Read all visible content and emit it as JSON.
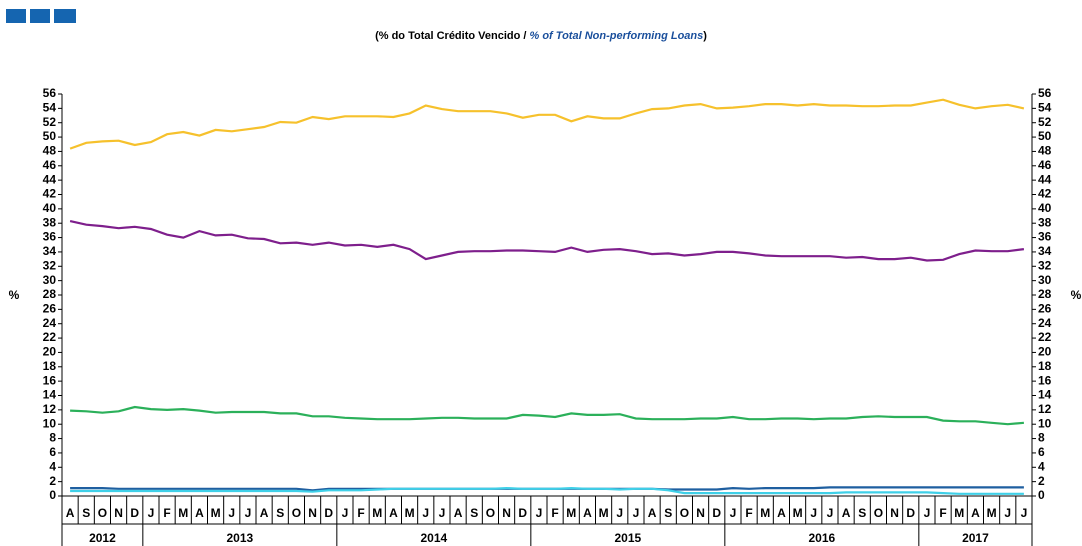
{
  "chart_data": {
    "type": "line",
    "subtitle": [
      "(% do Total Crédito Vencido / ",
      "% of Total Non-performing Loans",
      ")"
    ],
    "y_label": "%",
    "y2_label": "%",
    "categories": [
      "A",
      "S",
      "O",
      "N",
      "D",
      "J",
      "F",
      "M",
      "A",
      "M",
      "J",
      "J",
      "A",
      "S",
      "O",
      "N",
      "D",
      "J",
      "F",
      "M",
      "A",
      "M",
      "J",
      "J",
      "A",
      "S",
      "O",
      "N",
      "D",
      "J",
      "F",
      "M",
      "A",
      "M",
      "J",
      "J",
      "A",
      "S",
      "O",
      "N",
      "D",
      "J",
      "F",
      "M",
      "A",
      "M",
      "J",
      "J",
      "A",
      "S",
      "O",
      "N",
      "D",
      "J",
      "F",
      "M",
      "A",
      "M",
      "J",
      "J"
    ],
    "year_groups": [
      {
        "label": "2012",
        "months": 5
      },
      {
        "label": "2013",
        "months": 12
      },
      {
        "label": "2014",
        "months": 12
      },
      {
        "label": "2015",
        "months": 12
      },
      {
        "label": "2016",
        "months": 12
      },
      {
        "label": "2017",
        "months": 7
      }
    ],
    "ylim": [
      0,
      56
    ],
    "yticks": [
      0,
      2,
      4,
      6,
      8,
      10,
      12,
      14,
      16,
      18,
      20,
      22,
      24,
      26,
      28,
      30,
      32,
      34,
      36,
      38,
      40,
      42,
      44,
      46,
      48,
      50,
      52,
      54,
      56
    ],
    "y2lim": [
      0,
      56
    ],
    "y2ticks": [
      0,
      2,
      4,
      6,
      8,
      10,
      12,
      14,
      16,
      18,
      20,
      22,
      24,
      26,
      28,
      30,
      32,
      34,
      36,
      38,
      40,
      42,
      44,
      46,
      48,
      50,
      52,
      54,
      56
    ],
    "series": [
      {
        "color": "#f6c12c",
        "values": [
          48.4,
          49.2,
          49.4,
          49.5,
          48.9,
          49.3,
          50.4,
          50.7,
          50.2,
          51.0,
          50.8,
          51.1,
          51.4,
          52.1,
          52.0,
          52.8,
          52.5,
          52.9,
          52.9,
          52.9,
          52.8,
          53.3,
          54.4,
          53.9,
          53.6,
          53.6,
          53.6,
          53.3,
          52.7,
          53.1,
          53.1,
          52.2,
          52.9,
          52.6,
          52.6,
          53.3,
          53.9,
          54.0,
          54.4,
          54.6,
          54.0,
          54.1,
          54.3,
          54.6,
          54.6,
          54.4,
          54.6,
          54.4,
          54.4,
          54.3,
          54.3,
          54.4,
          54.4,
          54.8,
          55.2,
          54.5,
          54.0,
          54.3,
          54.5,
          54.0
        ]
      },
      {
        "color": "#7e1f8c",
        "values": [
          38.3,
          37.8,
          37.6,
          37.3,
          37.5,
          37.2,
          36.4,
          36.0,
          36.9,
          36.3,
          36.4,
          35.9,
          35.8,
          35.2,
          35.3,
          35.0,
          35.3,
          34.9,
          35.0,
          34.7,
          35.0,
          34.4,
          33.0,
          33.5,
          34.0,
          34.1,
          34.1,
          34.2,
          34.2,
          34.1,
          34.0,
          34.6,
          34.0,
          34.3,
          34.4,
          34.1,
          33.7,
          33.8,
          33.5,
          33.7,
          34.0,
          34.0,
          33.8,
          33.5,
          33.4,
          33.4,
          33.4,
          33.4,
          33.2,
          33.3,
          33.0,
          33.0,
          33.2,
          32.8,
          32.9,
          33.7,
          34.2,
          34.1,
          34.1,
          34.4
        ]
      },
      {
        "color": "#2bb05a",
        "values": [
          11.9,
          11.8,
          11.6,
          11.8,
          12.4,
          12.1,
          12.0,
          12.1,
          11.9,
          11.6,
          11.7,
          11.7,
          11.7,
          11.5,
          11.5,
          11.1,
          11.1,
          10.9,
          10.8,
          10.7,
          10.7,
          10.7,
          10.8,
          10.9,
          10.9,
          10.8,
          10.8,
          10.8,
          11.3,
          11.2,
          11.0,
          11.5,
          11.3,
          11.3,
          11.4,
          10.8,
          10.7,
          10.7,
          10.7,
          10.8,
          10.8,
          11.0,
          10.7,
          10.7,
          10.8,
          10.8,
          10.7,
          10.8,
          10.8,
          11.0,
          11.1,
          11.0,
          11.0,
          11.0,
          10.5,
          10.4,
          10.4,
          10.2,
          10.0,
          10.2
        ]
      },
      {
        "color": "#1f5fa0",
        "values": [
          1.1,
          1.1,
          1.1,
          1.0,
          1.0,
          1.0,
          1.0,
          1.0,
          1.0,
          1.0,
          1.0,
          1.0,
          1.0,
          1.0,
          1.0,
          0.8,
          1.0,
          1.0,
          1.0,
          1.0,
          1.0,
          1.0,
          1.0,
          1.0,
          1.0,
          1.0,
          1.0,
          1.0,
          1.0,
          1.0,
          1.0,
          1.0,
          1.0,
          1.0,
          1.0,
          1.0,
          1.0,
          0.9,
          0.9,
          0.9,
          0.9,
          1.1,
          1.0,
          1.1,
          1.1,
          1.1,
          1.1,
          1.2,
          1.2,
          1.2,
          1.2,
          1.2,
          1.2,
          1.2,
          1.2,
          1.2,
          1.2,
          1.2,
          1.2,
          1.2
        ]
      },
      {
        "color": "#3fd0e8",
        "values": [
          0.7,
          0.7,
          0.7,
          0.7,
          0.7,
          0.7,
          0.7,
          0.7,
          0.7,
          0.7,
          0.7,
          0.7,
          0.7,
          0.7,
          0.7,
          0.6,
          0.8,
          0.8,
          0.8,
          0.9,
          1.0,
          1.0,
          1.0,
          1.0,
          1.0,
          1.0,
          1.0,
          1.1,
          1.0,
          1.0,
          1.0,
          1.1,
          1.0,
          1.0,
          0.9,
          1.0,
          1.0,
          0.8,
          0.4,
          0.4,
          0.4,
          0.4,
          0.4,
          0.4,
          0.4,
          0.4,
          0.4,
          0.4,
          0.5,
          0.5,
          0.5,
          0.5,
          0.5,
          0.5,
          0.4,
          0.3,
          0.3,
          0.3,
          0.3,
          0.3
        ]
      }
    ]
  }
}
